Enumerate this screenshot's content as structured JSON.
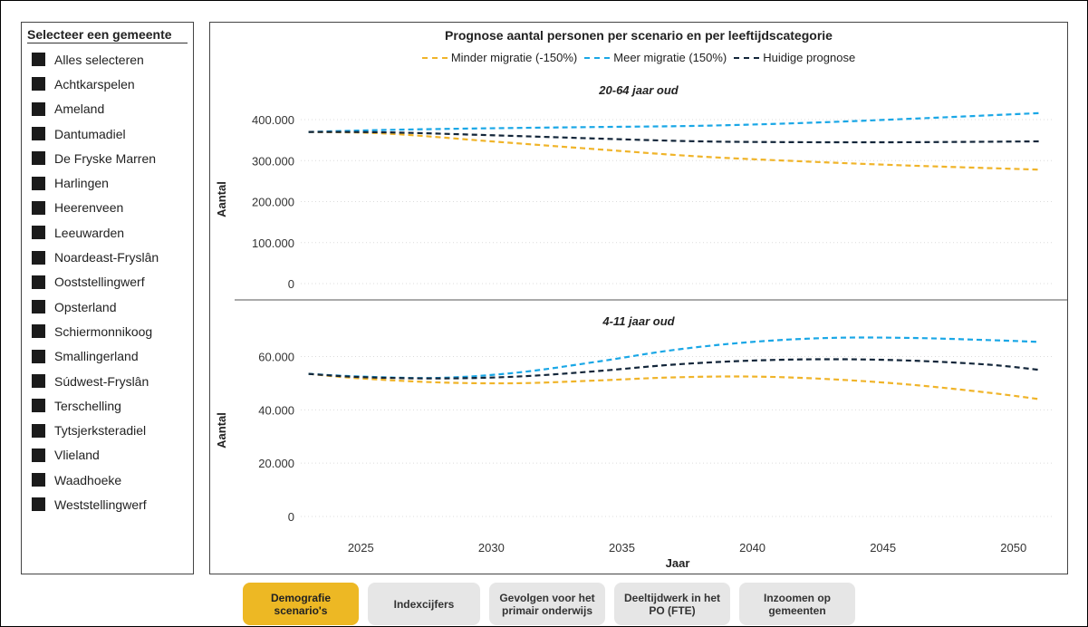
{
  "slicer": {
    "title": "Selecteer een gemeente",
    "items": [
      "Alles selecteren",
      "Achtkarspelen",
      "Ameland",
      "Dantumadiel",
      "De Fryske Marren",
      "Harlingen",
      "Heerenveen",
      "Leeuwarden",
      "Noardeast-Fryslân",
      "Ooststellingwerf",
      "Opsterland",
      "Schiermonnikoog",
      "Smallingerland",
      "Súdwest-Fryslân",
      "Terschelling",
      "Tytsjerksteradiel",
      "Vlieland",
      "Waadhoeke",
      "Weststellingwerf"
    ]
  },
  "chart": {
    "title": "Prognose aantal personen per scenario en per leeftijdscategorie",
    "legend": [
      {
        "name": "Minder migratie (-150%)",
        "color": "#f0b429"
      },
      {
        "name": "Meer migratie (150%)",
        "color": "#1aa7e6"
      },
      {
        "name": "Huidige prognose",
        "color": "#13263a"
      }
    ]
  },
  "chart_data": [
    {
      "type": "line",
      "title": "20-64 jaar oud",
      "xlabel": "",
      "ylabel": "Aantal",
      "x": [
        2023,
        2026,
        2030,
        2034,
        2038,
        2042,
        2046,
        2051
      ],
      "xlim": [
        2022.7,
        2051.5
      ],
      "xticks": [
        2025,
        2030,
        2035,
        2040,
        2045,
        2050
      ],
      "ylim": [
        0,
        420000
      ],
      "yticks": [
        0,
        100000,
        200000,
        300000,
        400000
      ],
      "ytick_labels": [
        "0",
        "100.000",
        "200.000",
        "300.000",
        "400.000"
      ],
      "grid": true,
      "series": [
        {
          "name": "Minder migratie (-150%)",
          "color": "#f0b429",
          "values": [
            370000,
            366000,
            347000,
            328000,
            310000,
            298000,
            288000,
            278000
          ]
        },
        {
          "name": "Meer migratie (150%)",
          "color": "#1aa7e6",
          "values": [
            370000,
            375000,
            379000,
            382000,
            385000,
            392000,
            402000,
            416000
          ]
        },
        {
          "name": "Huidige prognose",
          "color": "#13263a",
          "values": [
            370000,
            369000,
            362000,
            354000,
            347000,
            345000,
            345000,
            347000
          ]
        }
      ]
    },
    {
      "type": "line",
      "title": "4-11 jaar oud",
      "xlabel": "Jaar",
      "ylabel": "Aantal",
      "x": [
        2023,
        2025,
        2028,
        2031,
        2034,
        2037,
        2040,
        2043,
        2046,
        2049,
        2051
      ],
      "xlim": [
        2022.7,
        2051.5
      ],
      "xticks": [
        2025,
        2030,
        2035,
        2040,
        2045,
        2050
      ],
      "xtick_labels": [
        "2025",
        "2030",
        "2035",
        "2040",
        "2045",
        "2050"
      ],
      "ylim": [
        0,
        68000
      ],
      "yticks": [
        0,
        20000,
        40000,
        60000
      ],
      "ytick_labels": [
        "0",
        "20.000",
        "40.000",
        "60.000"
      ],
      "grid": true,
      "series": [
        {
          "name": "Minder migratie (-150%)",
          "color": "#f0b429",
          "values": [
            53500,
            51800,
            50300,
            50000,
            51000,
            52200,
            52500,
            51500,
            49500,
            46500,
            44000
          ]
        },
        {
          "name": "Meer migratie (150%)",
          "color": "#1aa7e6",
          "values": [
            53500,
            52500,
            52000,
            54000,
            58000,
            62500,
            65500,
            67000,
            67000,
            66200,
            65500
          ]
        },
        {
          "name": "Huidige prognose",
          "color": "#13263a",
          "values": [
            53500,
            52300,
            51800,
            52500,
            54500,
            57000,
            58500,
            59000,
            58500,
            57000,
            55000
          ]
        }
      ]
    }
  ],
  "tabs": [
    {
      "label": "Demografie scenario's",
      "active": true
    },
    {
      "label": "Indexcijfers",
      "active": false
    },
    {
      "label": "Gevolgen voor het primair onderwijs",
      "active": false
    },
    {
      "label": "Deeltijdwerk in het PO (FTE)",
      "active": false
    },
    {
      "label": "Inzoomen op gemeenten",
      "active": false
    }
  ]
}
